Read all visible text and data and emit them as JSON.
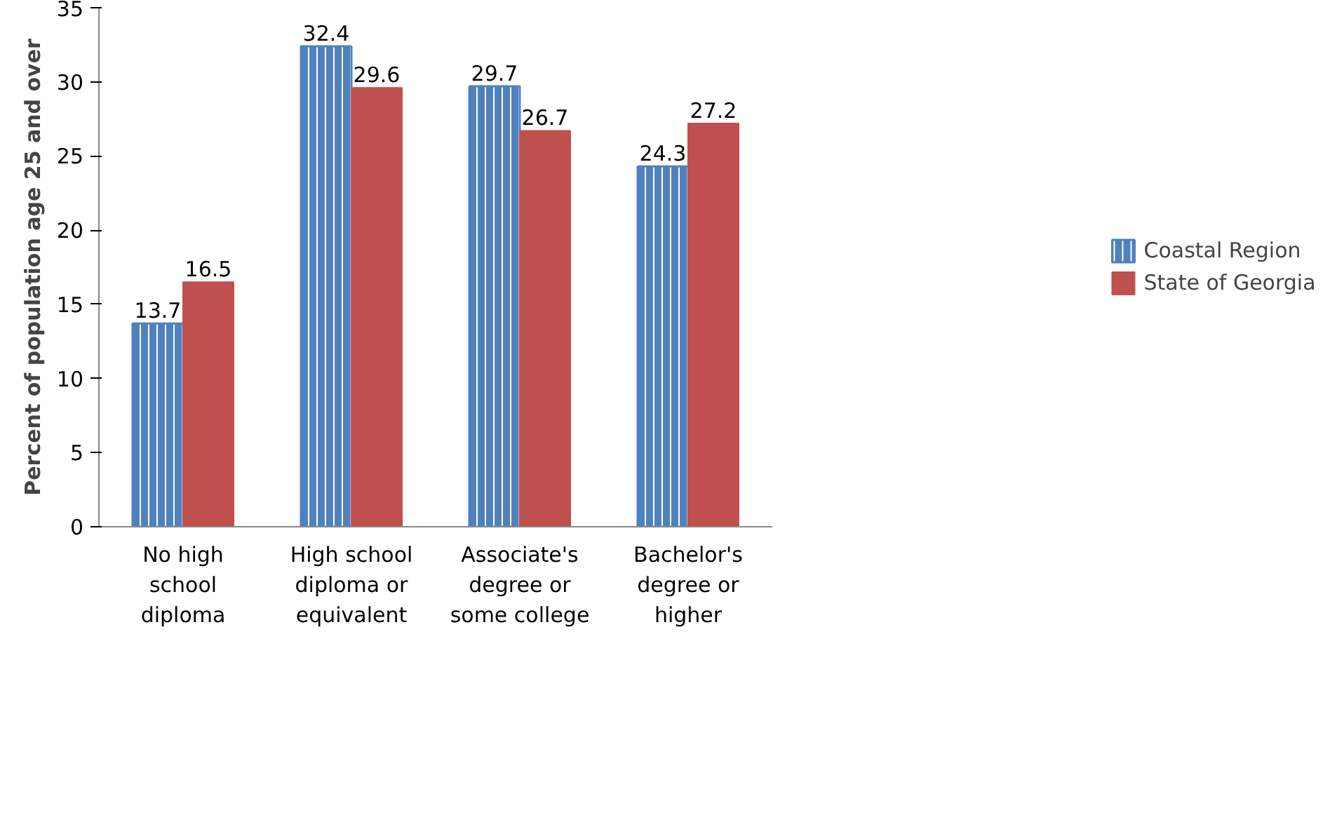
{
  "chart_data": {
    "type": "bar",
    "ylabel": "Percent of population age 25 and over",
    "categories": [
      "No high school diploma",
      "High school diploma or equivalent",
      "Associate's degree or some college",
      "Bachelor's degree or higher"
    ],
    "series": [
      {
        "name": "Coastal Region",
        "color": "#4f81bd",
        "values": [
          13.7,
          32.4,
          29.7,
          24.3
        ]
      },
      {
        "name": "State of Georgia",
        "color": "#c0504d",
        "values": [
          16.5,
          29.6,
          26.7,
          27.2
        ]
      }
    ],
    "ylim": [
      0,
      35
    ],
    "yticks": [
      0,
      5,
      10,
      15,
      20,
      25,
      30,
      35
    ],
    "grid": false,
    "legend": "right",
    "data_labels": true
  }
}
